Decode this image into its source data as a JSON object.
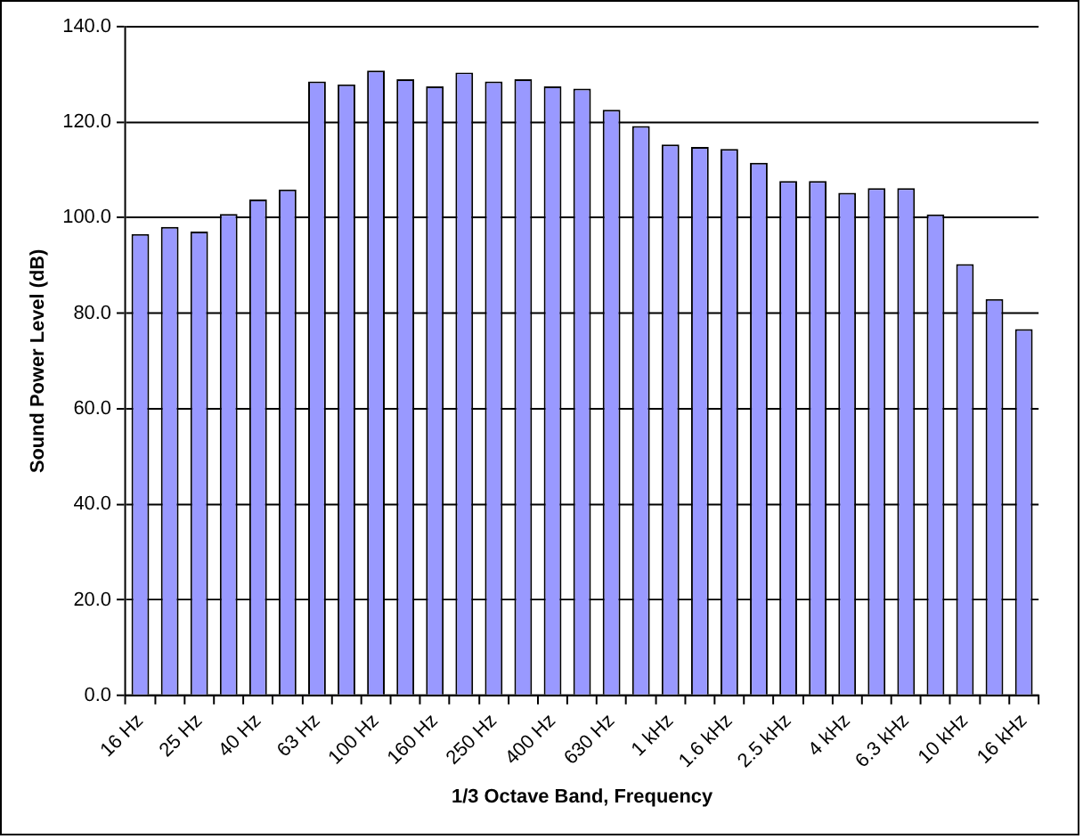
{
  "chart_data": {
    "type": "bar",
    "xlabel": "1/3 Octave Band, Frequency",
    "ylabel": "Sound Power Level (dB)",
    "categories": [
      "16 Hz",
      null,
      "25 Hz",
      null,
      "40 Hz",
      null,
      "63 Hz",
      null,
      "100 Hz",
      null,
      "160 Hz",
      null,
      "250 Hz",
      null,
      "400 Hz",
      null,
      "630 Hz",
      null,
      "1 kHz",
      null,
      "1.6 kHz",
      null,
      "2.5 kHz",
      null,
      "4 kHz",
      null,
      "6.3 kHz",
      null,
      "10 kHz",
      null,
      "16 kHz"
    ],
    "values": [
      96.6,
      98.1,
      97.1,
      100.8,
      103.8,
      105.9,
      128.5,
      127.9,
      130.8,
      129.0,
      127.5,
      130.4,
      128.5,
      129.0,
      127.5,
      127.0,
      122.6,
      119.2,
      115.3,
      114.8,
      114.4,
      111.5,
      107.7,
      107.7,
      105.2,
      106.2,
      106.2,
      100.7,
      90.3,
      83.0,
      76.7
    ],
    "color": "#9999ff",
    "ylim": [
      0,
      140
    ],
    "yticks": [
      {
        "value": 0,
        "label": "0.0"
      },
      {
        "value": 20,
        "label": "20.0"
      },
      {
        "value": 40,
        "label": "40.0"
      },
      {
        "value": 60,
        "label": "60.0"
      },
      {
        "value": 80,
        "label": "80.0"
      },
      {
        "value": 100,
        "label": "100.0"
      },
      {
        "value": 120,
        "label": "120.0"
      },
      {
        "value": 140,
        "label": "140.0"
      }
    ],
    "grid": "y",
    "legend": false
  }
}
